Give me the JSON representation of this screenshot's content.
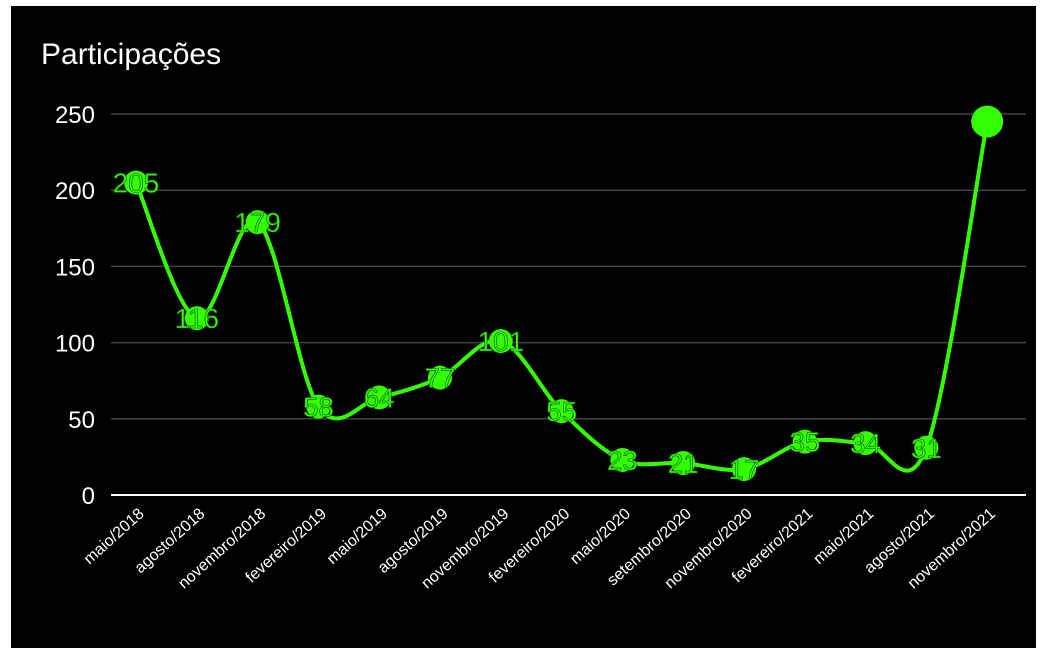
{
  "colors": {
    "background": "#000000",
    "line": "#33ff00",
    "grid": "#444444",
    "axis": "#ffffff",
    "text": "#ffffff"
  },
  "chart_data": {
    "type": "line",
    "title": "Participações",
    "categories": [
      "maio/2018",
      "agosto/2018",
      "novembro/2018",
      "fevereiro/2019",
      "maio/2019",
      "agosto/2019",
      "novembro/2019",
      "fevereiro/2020",
      "maio/2020",
      "setembro/2020",
      "novembro/2020",
      "fevereiro/2021",
      "maio/2021",
      "agosto/2021",
      "novembro/2021"
    ],
    "values": [
      205,
      116,
      179,
      58,
      64,
      77,
      101,
      55,
      23,
      21,
      17,
      35,
      34,
      31,
      245
    ],
    "data_labels": [
      "205",
      "116",
      "179",
      "58",
      "64",
      "77",
      "101",
      "55",
      "23",
      "21",
      "17",
      "35",
      "34",
      "31",
      ""
    ],
    "ylim": [
      0,
      250
    ],
    "yticks": [
      0,
      50,
      100,
      150,
      200,
      250
    ],
    "grid": true
  }
}
